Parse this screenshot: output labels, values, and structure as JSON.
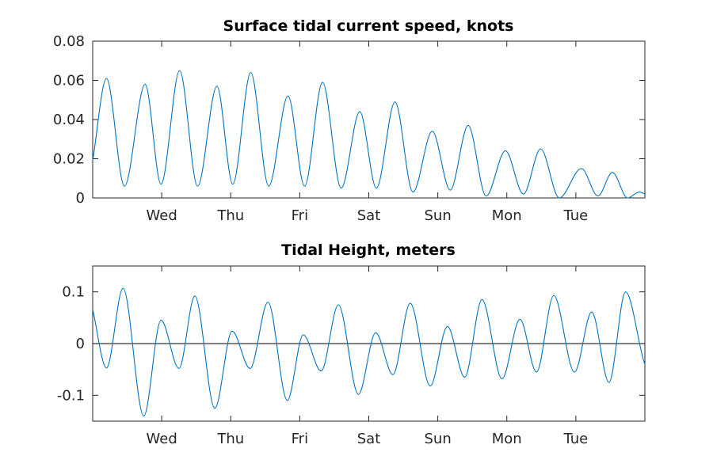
{
  "colors": {
    "series": "#0072bd",
    "axis": "#262626",
    "zero_line": "#000000"
  },
  "chart_data": [
    {
      "type": "line",
      "title": "Surface tidal current speed, knots",
      "xlim": [
        0,
        8
      ],
      "ylim": [
        0,
        0.08
      ],
      "xticks": [
        {
          "x": 1,
          "label": "Wed"
        },
        {
          "x": 2,
          "label": "Thu"
        },
        {
          "x": 3,
          "label": "Fri"
        },
        {
          "x": 4,
          "label": "Sat"
        },
        {
          "x": 5,
          "label": "Sun"
        },
        {
          "x": 6,
          "label": "Mon"
        },
        {
          "x": 7,
          "label": "Tue"
        }
      ],
      "yticks": [
        {
          "y": 0,
          "label": "0"
        },
        {
          "y": 0.02,
          "label": "0.02"
        },
        {
          "y": 0.04,
          "label": "0.04"
        },
        {
          "y": 0.06,
          "label": "0.06"
        },
        {
          "y": 0.08,
          "label": "0.08"
        }
      ],
      "series": [
        {
          "x": [
            0,
            0.2,
            0.46,
            0.76,
            0.99,
            1.26,
            1.52,
            1.8,
            2.03,
            2.29,
            2.55,
            2.83,
            3.07,
            3.33,
            3.6,
            3.87,
            4.11,
            4.38,
            4.64,
            4.92,
            5.18,
            5.44,
            5.7,
            5.98,
            6.24,
            6.49,
            6.76,
            7.08,
            7.32,
            7.53,
            7.75,
            7.92,
            8
          ],
          "y": [
            0.019,
            0.061,
            0.006,
            0.058,
            0.007,
            0.065,
            0.006,
            0.057,
            0.007,
            0.064,
            0.006,
            0.052,
            0.006,
            0.059,
            0.005,
            0.044,
            0.005,
            0.049,
            0.003,
            0.034,
            0.004,
            0.037,
            0.001,
            0.024,
            0.002,
            0.025,
            0.0,
            0.015,
            0.001,
            0.013,
            0.0,
            0.003,
            0.002
          ]
        }
      ]
    },
    {
      "type": "line",
      "title": "Tidal Height, meters",
      "xlim": [
        0,
        8
      ],
      "ylim": [
        -0.15,
        0.15
      ],
      "xticks": [
        {
          "x": 1,
          "label": "Wed"
        },
        {
          "x": 2,
          "label": "Thu"
        },
        {
          "x": 3,
          "label": "Fri"
        },
        {
          "x": 4,
          "label": "Sat"
        },
        {
          "x": 5,
          "label": "Sun"
        },
        {
          "x": 6,
          "label": "Mon"
        },
        {
          "x": 7,
          "label": "Tue"
        }
      ],
      "yticks": [
        {
          "y": -0.1,
          "label": "-0.1"
        },
        {
          "y": 0,
          "label": "0"
        },
        {
          "y": 0.1,
          "label": "0.1"
        }
      ],
      "zero_line": true,
      "series": [
        {
          "x": [
            0,
            0.2,
            0.44,
            0.74,
            0.99,
            1.25,
            1.48,
            1.77,
            2.02,
            2.28,
            2.54,
            2.82,
            3.05,
            3.31,
            3.56,
            3.85,
            4.1,
            4.35,
            4.6,
            4.89,
            5.14,
            5.39,
            5.64,
            5.93,
            6.19,
            6.43,
            6.68,
            6.98,
            7.23,
            7.48,
            7.72,
            7.98,
            8
          ],
          "y": [
            0.066,
            -0.047,
            0.107,
            -0.14,
            0.045,
            -0.048,
            0.092,
            -0.125,
            0.024,
            -0.048,
            0.08,
            -0.11,
            0.017,
            -0.053,
            0.075,
            -0.098,
            0.021,
            -0.06,
            0.078,
            -0.082,
            0.033,
            -0.065,
            0.085,
            -0.068,
            0.047,
            -0.055,
            0.093,
            -0.055,
            0.061,
            -0.075,
            0.1,
            -0.032,
            -0.04
          ]
        }
      ]
    }
  ]
}
